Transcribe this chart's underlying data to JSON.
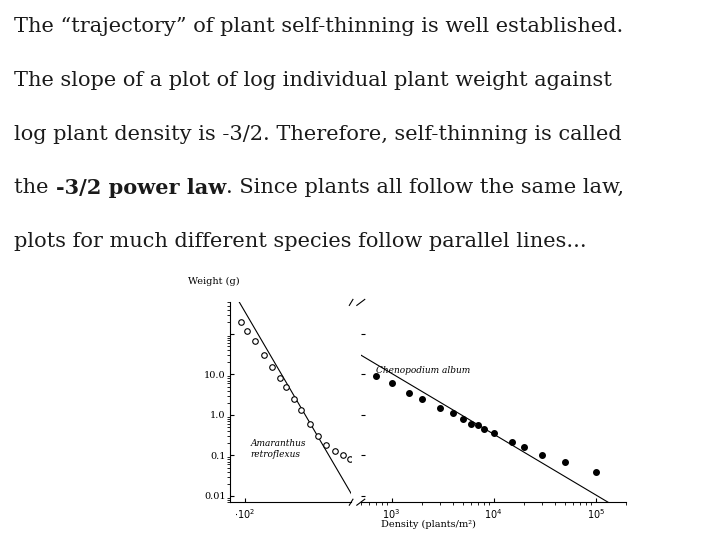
{
  "background_color": "#ffffff",
  "text_color": "#1a1a1a",
  "line1": "The “trajectory” of plant self-thinning is well established.",
  "line2": "The slope of a plot of log individual plant weight against",
  "line3": "log plant density is -3/2. Therefore, self-thinning is called",
  "line4_pre": "the ",
  "line4_bold": "-3/2 power law",
  "line4_post": ". Since plants all follow the same law,",
  "line5": "plots for much different species follow parallel lines...",
  "xlabel": "Density (plants/m²)",
  "ylabel": "Weight (g)",
  "amaranthus_open_x": [
    0.008,
    0.012,
    0.02,
    0.035,
    0.06,
    0.1,
    0.15,
    0.25,
    0.4,
    0.7,
    1.2,
    2.0,
    3.5,
    6.0,
    9.0
  ],
  "amaranthus_open_y": [
    200,
    120,
    65,
    30,
    15,
    8,
    5,
    2.5,
    1.3,
    0.6,
    0.3,
    0.18,
    0.13,
    0.1,
    0.08
  ],
  "chenopodium_filled_x": [
    700,
    1000,
    1500,
    2000,
    3000,
    4000,
    5000,
    6000,
    7000,
    8000,
    10000,
    15000,
    20000,
    30000,
    50000,
    100000
  ],
  "chenopodium_filled_y": [
    9.0,
    6.0,
    3.5,
    2.5,
    1.5,
    1.1,
    0.8,
    0.6,
    0.55,
    0.45,
    0.35,
    0.22,
    0.16,
    0.1,
    0.07,
    0.04
  ],
  "slope": -1.5,
  "am_line_x_start_log": -2.5,
  "am_line_x_end_log": 1.1,
  "ch_line_x_start_log": 2.7,
  "ch_line_x_end_log": 5.2,
  "ylim": [
    0.007,
    600
  ],
  "xlim_left": [
    0.005,
    12
  ],
  "xlim_right": [
    500,
    200000
  ],
  "label_amaranthus": "Amaranthus\nretroflexus",
  "label_chenopodium": "Chenopodium album",
  "fontsize_text": 15,
  "fontsize_plot": 7
}
